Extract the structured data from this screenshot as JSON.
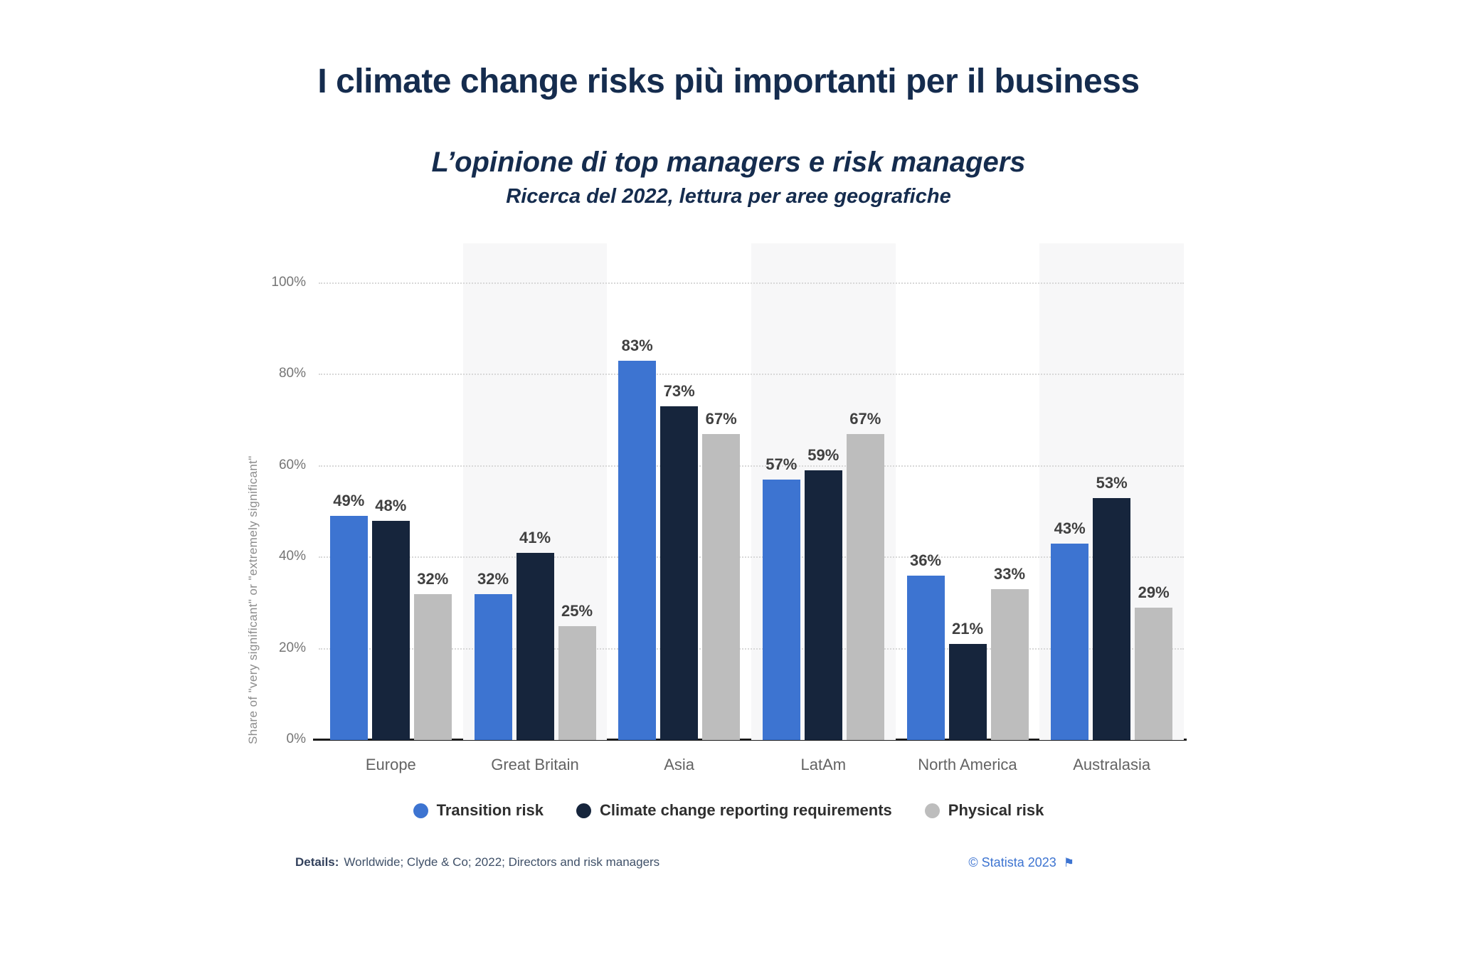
{
  "chart_data": {
    "type": "bar",
    "title": "I climate change risks più importanti per il business",
    "subtitle": "L’opinione di top managers e risk managers",
    "subtitle2": "Ricerca del 2022, lettura per aree geografiche",
    "categories": [
      "Europe",
      "Great Britain",
      "Asia",
      "LatAm",
      "North America",
      "Australasia"
    ],
    "series": [
      {
        "name": "Transition risk",
        "color": "#3d74d1",
        "values": [
          49,
          32,
          83,
          57,
          36,
          43
        ]
      },
      {
        "name": "Climate change reporting requirements",
        "color": "#16253c",
        "values": [
          48,
          41,
          73,
          59,
          21,
          53
        ]
      },
      {
        "name": "Physical risk",
        "color": "#bdbdbd",
        "values": [
          32,
          25,
          67,
          67,
          33,
          29
        ]
      }
    ],
    "ylabel": "Share of \"very significant\" or \"extremely significant\"",
    "yticks": [
      0,
      20,
      40,
      60,
      80,
      100
    ],
    "ytick_format": "{v}%",
    "value_label_format": "{v}%",
    "ylim": [
      0,
      100
    ],
    "grid": "horizontal-dotted",
    "plot_band_pattern": "alternating",
    "plot_band_color": "#f7f7f8",
    "legend_position": "bottom"
  },
  "footer": {
    "details_label": "Details:",
    "details_text": "Worldwide; Clyde & Co; 2022; Directors and risk managers",
    "copyright": "© Statista 2023",
    "flag_icon": "⚑"
  }
}
